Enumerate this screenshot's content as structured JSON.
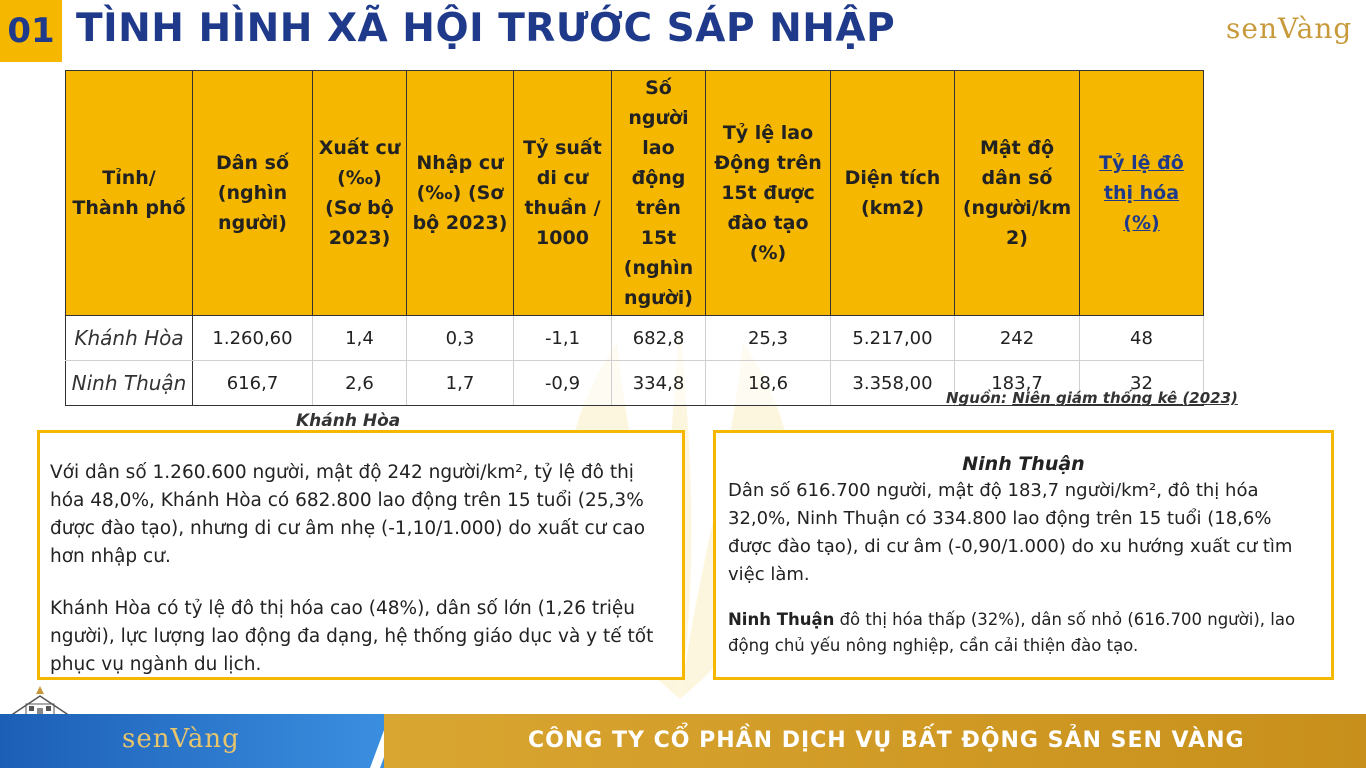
{
  "header": {
    "section_number": "01",
    "title": "TÌNH HÌNH XÃ HỘI TRƯỚC SÁP NHẬP",
    "brand_logo_text": "senVàng"
  },
  "table": {
    "headers": [
      "Tỉnh/ Thành phố",
      "Dân số (nghìn người)",
      "Xuất cư (‰) (Sơ bộ 2023)",
      "Nhập cư (‰) (Sơ bộ 2023)",
      "Tỷ suất di cư thuần / 1000",
      "Số người lao động trên 15t (nghìn người)",
      "Tỷ lệ lao Động trên 15t được đào tạo (%)",
      "Diện tích (km2)",
      "Mật độ dân số (người/km 2)",
      "Tỷ lệ đô thị hóa (%)"
    ],
    "rows": [
      [
        "Khánh Hòa",
        "1.260,60",
        "1,4",
        "0,3",
        "-1,1",
        "682,8",
        "25,3",
        "5.217,00",
        "242",
        "48"
      ],
      [
        "Ninh Thuận",
        "616,7",
        "2,6",
        "1,7",
        "-0,9",
        "334,8",
        "18,6",
        "3.358,00",
        "183,7",
        "32"
      ]
    ]
  },
  "source": {
    "prefix": "Nguồn:",
    "link": "Niên giám thống kê (2023)"
  },
  "khanh_hoa": {
    "caption": "Khánh Hòa",
    "p1": "Với dân số 1.260.600 người, mật độ 242 người/km², tỷ lệ đô thị hóa 48,0%, Khánh Hòa có 682.800 lao động trên 15 tuổi (25,3% được đào tạo), nhưng di cư âm nhẹ (-1,10/1.000) do xuất cư cao hơn nhập cư.",
    "p2": "Khánh Hòa có tỷ lệ đô thị hóa cao (48%), dân số lớn (1,26 triệu người), lực lượng lao động đa dạng, hệ thống giáo dục và y tế tốt phục vụ ngành du lịch."
  },
  "ninh_thuan": {
    "heading": "Ninh Thuận",
    "p1": "Dân số 616.700 người, mật độ 183,7 người/km², đô thị hóa 32,0%, Ninh Thuận có 334.800 lao động trên 15 tuổi (18,6% được đào tạo), di cư âm (-0,90/1.000) do xu hướng xuất cư tìm việc làm.",
    "p2_bold": "Ninh Thuận",
    "p2_rest": " đô thị hóa thấp (32%), dân số nhỏ (616.700 người), lao động chủ yếu nông nghiệp, cần cải thiện đào tạo."
  },
  "footer": {
    "logo_text": "senVàng",
    "company": "CÔNG TY CỔ PHẦN DỊCH VỤ BẤT ĐỘNG SẢN SEN VÀNG"
  },
  "colors": {
    "accent_yellow": "#f5b700",
    "title_blue": "#1f3a8a",
    "footer_blue": "#1c5fb6",
    "footer_gold": "#c8901b"
  }
}
